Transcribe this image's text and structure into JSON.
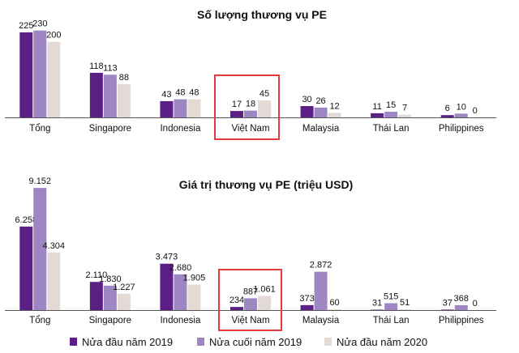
{
  "colors": {
    "s2019h1": "#5b1f86",
    "s2019h2": "#9e86c3",
    "s2020h1": "#e3d9d5",
    "highlight": "#e23b3b",
    "axis": "#555555"
  },
  "legend": [
    {
      "label": "Nửa đầu năm 2019"
    },
    {
      "label": "Nửa cuối năm 2019"
    },
    {
      "label": "Nửa đầu năm 2020"
    }
  ],
  "chart_data": [
    {
      "type": "bar",
      "title": "Số lượng thương vụ PE",
      "categories": [
        "Tổng",
        "Singapore",
        "Indonesia",
        "Việt Nam",
        "Malaysia",
        "Thái Lan",
        "Philippines"
      ],
      "highlight_category": "Việt Nam",
      "ylim": [
        0,
        240
      ],
      "series": [
        {
          "name": "Nửa đầu năm 2019",
          "values": [
            225,
            118,
            43,
            17,
            30,
            11,
            6
          ],
          "labels": [
            "225",
            "118",
            "43",
            "17",
            "30",
            "11",
            "6"
          ]
        },
        {
          "name": "Nửa cuối năm 2019",
          "values": [
            230,
            113,
            48,
            18,
            26,
            15,
            10
          ],
          "labels": [
            "230",
            "113",
            "48",
            "18",
            "26",
            "15",
            "10"
          ]
        },
        {
          "name": "Nửa đầu năm 2020",
          "values": [
            200,
            88,
            48,
            45,
            12,
            7,
            0
          ],
          "labels": [
            "200",
            "88",
            "48",
            "45",
            "12",
            "7",
            "0"
          ]
        }
      ]
    },
    {
      "type": "bar",
      "title": "Giá trị thương vụ PE (triệu USD)",
      "categories": [
        "Tổng",
        "Singapore",
        "Indonesia",
        "Việt Nam",
        "Malaysia",
        "Thái Lan",
        "Philippines"
      ],
      "highlight_category": "Việt Nam",
      "ylim": [
        0,
        9400
      ],
      "series": [
        {
          "name": "Nửa đầu năm 2019",
          "values": [
            6258,
            2110,
            3473,
            234,
            373,
            31,
            37
          ],
          "labels": [
            "6.258",
            "2.110",
            "3.473",
            "234",
            "373",
            "31",
            "37"
          ]
        },
        {
          "name": "Nửa cuối năm 2019",
          "values": [
            9152,
            1830,
            2680,
            887,
            2872,
            515,
            368
          ],
          "labels": [
            "9.152",
            "1.830",
            "2.680",
            "887",
            "2.872",
            "515",
            "368"
          ]
        },
        {
          "name": "Nửa đầu năm 2020",
          "values": [
            4304,
            1227,
            1905,
            1061,
            60,
            51,
            0
          ],
          "labels": [
            "4.304",
            "1.227",
            "1.905",
            "1.061",
            "60",
            "51",
            "0"
          ]
        }
      ]
    }
  ]
}
